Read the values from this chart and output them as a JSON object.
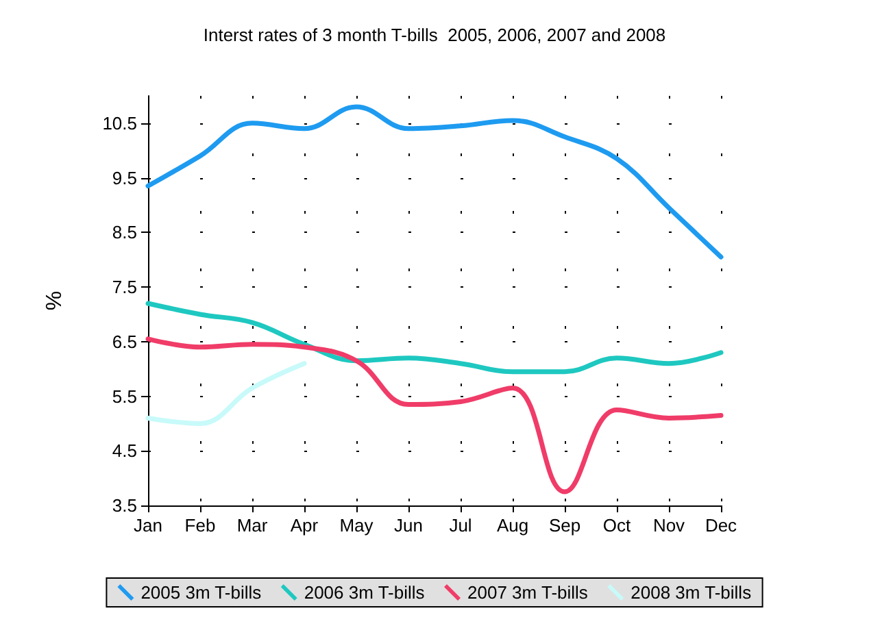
{
  "chart_data": {
    "type": "line",
    "title": "Interst rates of 3 month T-bills  2005, 2006, 2007 and 2008",
    "ylabel": "%",
    "categories": [
      "Jan",
      "Feb",
      "Mar",
      "Apr",
      "May",
      "Jun",
      "Jul",
      "Aug",
      "Sep",
      "Oct",
      "Nov",
      "Dec"
    ],
    "series": [
      {
        "name": "2005 3m T-bills",
        "color": "#1e9bf0",
        "values": [
          9.35,
          9.9,
          10.5,
          10.4,
          10.8,
          10.4,
          10.45,
          10.55,
          10.25,
          9.85,
          8.95,
          8.05
        ]
      },
      {
        "name": "2006 3m T-bills",
        "color": "#1ec8c0",
        "values": [
          7.2,
          7.0,
          6.85,
          6.45,
          6.15,
          6.2,
          6.1,
          5.95,
          5.95,
          6.2,
          6.1,
          6.3
        ]
      },
      {
        "name": "2007 3m T-bills",
        "color": "#f03c68",
        "values": [
          6.55,
          6.4,
          6.45,
          6.4,
          6.15,
          5.35,
          5.4,
          5.65,
          3.75,
          5.25,
          5.1,
          5.15
        ]
      },
      {
        "name": "2008 3m T-bills",
        "color": "#c8fafa",
        "values": [
          5.1,
          5.0,
          5.65,
          6.1,
          null,
          null,
          null,
          null,
          null,
          null,
          null,
          null
        ]
      }
    ],
    "ylim": [
      3.5,
      11
    ],
    "yticks": [
      3.5,
      4.5,
      5.5,
      6.5,
      7.5,
      8.5,
      9.5,
      10.5
    ],
    "grid": true,
    "legend": "bottom",
    "marker": "none",
    "line_style": "solid"
  }
}
